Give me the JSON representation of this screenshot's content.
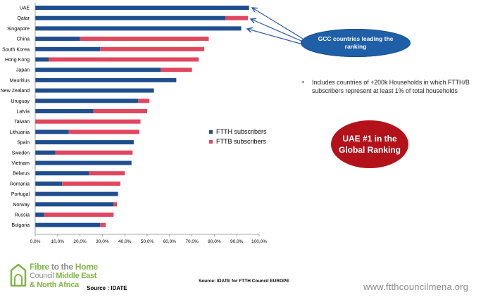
{
  "chart_data": {
    "type": "bar",
    "orientation": "horizontal",
    "stacked": true,
    "categories": [
      "UAE",
      "Qatar",
      "Singapore",
      "China",
      "South Korea",
      "Hong Kong",
      "Japan",
      "Mauritius",
      "New Zealand",
      "Uruguay",
      "Latvia",
      "Taiwan",
      "Lithuania",
      "Spain",
      "Sweden",
      "Vietnam",
      "Belarus",
      "Romania",
      "Portugal",
      "Norway",
      "Russia",
      "Bulgaria"
    ],
    "series": [
      {
        "name": "FTTH subscribers",
        "color": "#1f4e8f",
        "values": [
          95.5,
          85,
          92,
          20,
          29,
          6,
          56,
          63,
          53,
          46,
          26,
          0,
          15,
          44,
          9,
          43,
          24,
          12,
          37,
          35,
          4,
          29
        ]
      },
      {
        "name": "FTTB subscribers",
        "color": "#e0475f",
        "values": [
          0,
          10,
          0,
          57.5,
          46.5,
          67,
          14,
          0,
          0,
          5,
          24,
          47,
          31.5,
          0,
          34.5,
          0,
          16,
          26,
          0,
          1.5,
          31,
          2.5
        ]
      }
    ],
    "xlim": [
      0,
      100
    ],
    "x_ticks": [
      "0,0%",
      "10,0%",
      "20,0%",
      "30,0%",
      "40,0%",
      "50,0%",
      "60,0%",
      "70,0%",
      "80,0%",
      "90,0%",
      "100,0%"
    ],
    "legend_position": "center-right",
    "grid": false
  },
  "annotations": {
    "callout": "GCC countries leading the ranking",
    "note": "Includes countries of +200k Households in which FTTH/B subscribers represent at least 1% of total households",
    "note_bullet": "▪",
    "rank_badge": "UAE #1 in the Global Ranking"
  },
  "footer": {
    "logo_line1_a": "Fibre",
    "logo_line1_b": " to the ",
    "logo_line1_c": "Home",
    "logo_line2_a": "Council ",
    "logo_line2_b": "Middle East",
    "logo_line3": "& North Africa",
    "source_left": "Source : IDATE",
    "source_center": "Source: IDATE for FTTH Council EUROPE",
    "website": "www.ftthcouncilmena.org"
  },
  "colors": {
    "callout_bg": "#1f5fa8",
    "badge_bg": "#b3121b",
    "arrow": "#2a5aa6",
    "brand_green": "#7fb642"
  }
}
